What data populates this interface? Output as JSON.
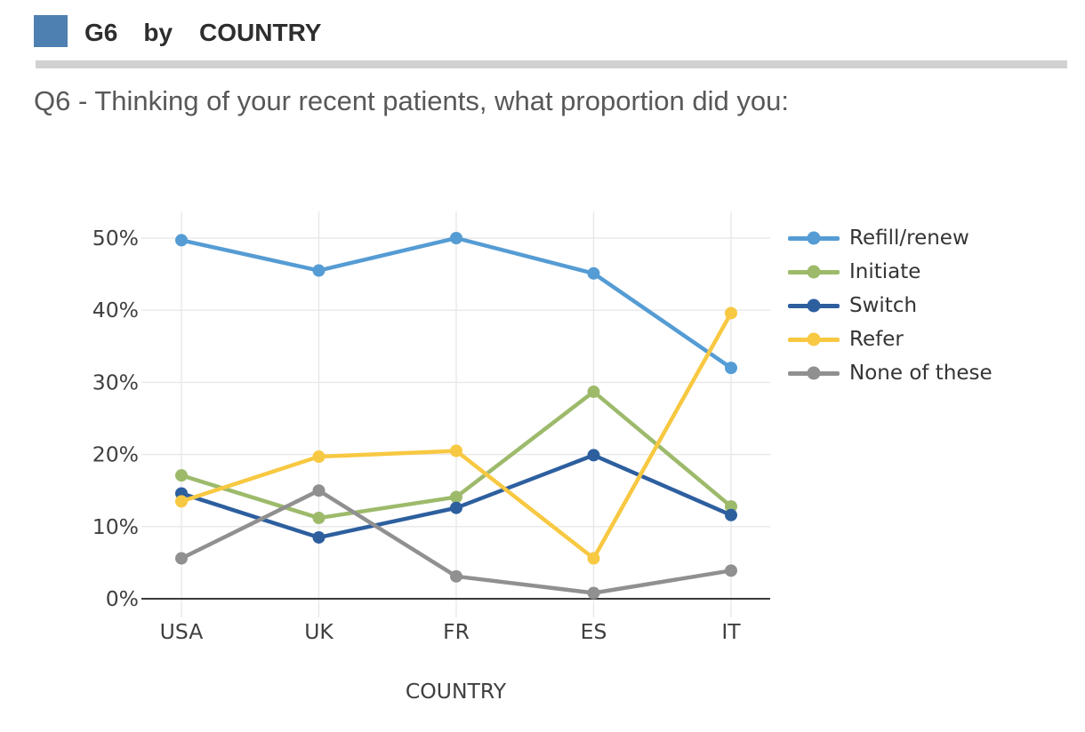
{
  "header": {
    "icon_color": "#4e80b1",
    "measure": "G6",
    "connector": "by",
    "group": "COUNTRY"
  },
  "question": {
    "text": "Q6 - Thinking of your recent patients, what proportion did you:"
  },
  "chart_data": {
    "type": "line",
    "title": "",
    "xlabel": "COUNTRY",
    "ylabel": "",
    "categories": [
      "USA",
      "UK",
      "FR",
      "ES",
      "IT"
    ],
    "y_ticks": [
      "0%",
      "10%",
      "20%",
      "30%",
      "40%",
      "50%"
    ],
    "ylim": [
      0,
      50
    ],
    "grid": true,
    "legend_position": "right",
    "marker": "circle",
    "series": [
      {
        "name": "Refill/renew",
        "color": "#559cd4",
        "values": [
          49.7,
          45.5,
          50.0,
          45.1,
          32.0
        ]
      },
      {
        "name": "Initiate",
        "color": "#9dba6b",
        "values": [
          17.1,
          11.2,
          14.1,
          28.7,
          12.8
        ]
      },
      {
        "name": "Switch",
        "color": "#2d5f9f",
        "values": [
          14.6,
          8.5,
          12.6,
          19.9,
          11.6
        ]
      },
      {
        "name": "Refer",
        "color": "#f7c841",
        "values": [
          13.5,
          19.7,
          20.5,
          5.6,
          39.6
        ]
      },
      {
        "name": "None of these",
        "color": "#909090",
        "values": [
          5.6,
          15.0,
          3.1,
          0.8,
          3.9
        ]
      }
    ]
  }
}
